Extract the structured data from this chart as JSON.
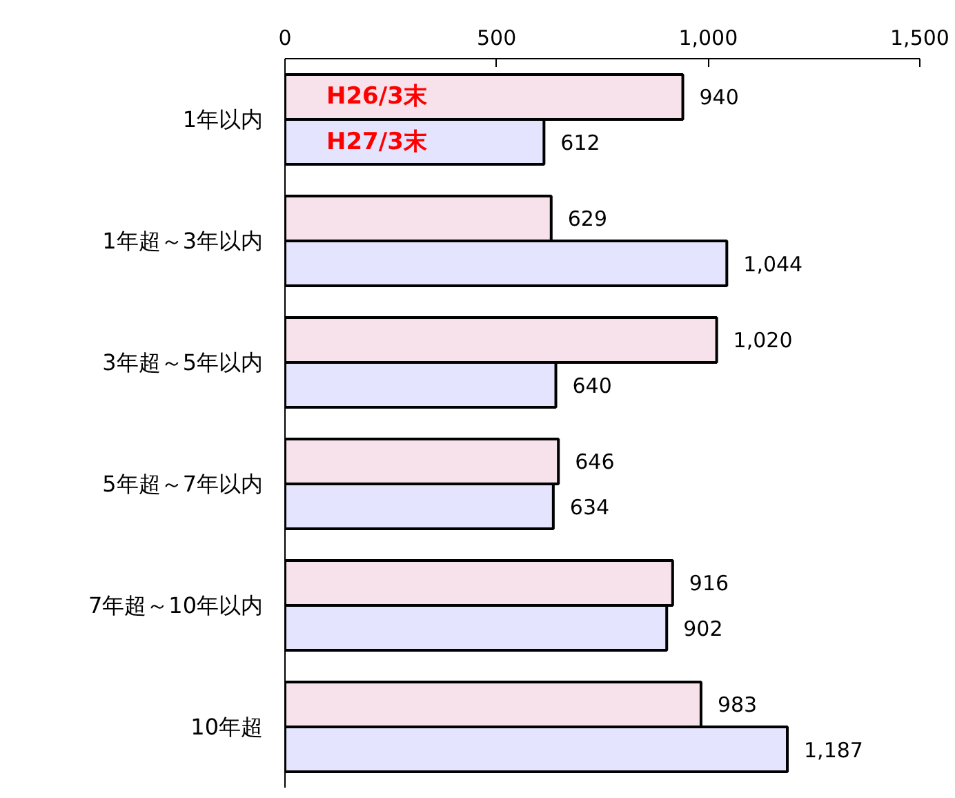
{
  "chart_data": {
    "type": "bar",
    "orientation": "horizontal",
    "categories": [
      "1年以内",
      "1年超～3年以内",
      "3年超～5年以内",
      "5年超～7年以内",
      "7年超～10年以内",
      "10年超"
    ],
    "series": [
      {
        "name": "H26/3末",
        "color": "#f7e1ea",
        "values": [
          940,
          629,
          1020,
          646,
          916,
          983
        ],
        "value_labels": [
          "940",
          "629",
          "1,020",
          "646",
          "916",
          "983"
        ]
      },
      {
        "name": "H27/3末",
        "color": "#e4e4ff",
        "values": [
          612,
          1044,
          640,
          634,
          902,
          1187
        ],
        "value_labels": [
          "612",
          "1,044",
          "640",
          "634",
          "902",
          "1,187"
        ]
      }
    ],
    "xlim": [
      0,
      1500
    ],
    "xticks": [
      0,
      500,
      {
        "value": 1000,
        "label": "1,000"
      },
      {
        "value": 1500,
        "label": "1,500"
      }
    ]
  }
}
